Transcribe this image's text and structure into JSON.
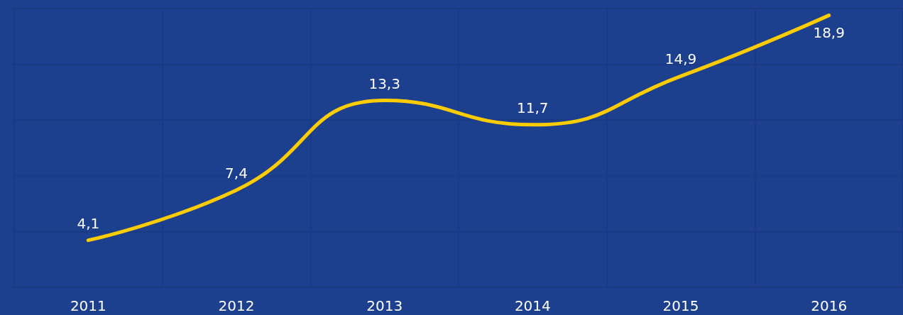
{
  "chart_data": {
    "type": "line",
    "categories": [
      "2011",
      "2012",
      "2013",
      "2014",
      "2015",
      "2016"
    ],
    "values": [
      4.1,
      7.4,
      13.3,
      11.7,
      14.9,
      18.9
    ],
    "value_labels": [
      "4,1",
      "7,4",
      "13,3",
      "11,7",
      "14,9",
      "18,9"
    ],
    "color": "#ffcc00",
    "ylim": [
      1,
      19.35
    ],
    "yticks": [
      {
        "value": 1,
        "label": null
      },
      {
        "value": 4.67,
        "label": null
      },
      {
        "value": 8.34,
        "label": null
      },
      {
        "value": 12.01,
        "label": null
      },
      {
        "value": 15.68,
        "label": null
      },
      {
        "value": 19.35,
        "label": null
      }
    ],
    "grid": true,
    "tick_labels": "x",
    "marker": "none"
  }
}
